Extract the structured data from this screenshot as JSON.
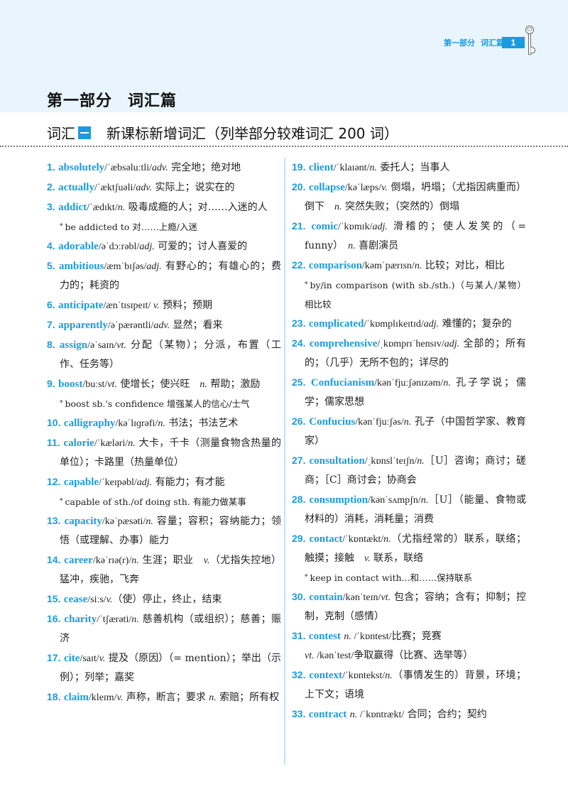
{
  "header": {
    "running_part": "第一部分",
    "running_section": "词汇篇",
    "page_number": "1",
    "accent_color": "#1a9be0",
    "band_color": "#e8f5fd"
  },
  "part_title": {
    "part": "第一部分",
    "name": "词汇篇"
  },
  "section_title": {
    "prefix": "词汇",
    "badge": "一",
    "title": "新课标新增词汇（列举部分较难词汇 200 词）"
  },
  "columns": [
    [
      {
        "num": "1.",
        "word": "absolutely",
        "lines": [
          [
            {
              "t": "/ˈæbsəluːtli/",
              "s": "p"
            },
            {
              "t": "adv.",
              "s": "i"
            },
            {
              "t": " 完全地；绝对地",
              "s": "d"
            }
          ]
        ]
      },
      {
        "num": "2.",
        "word": "actually",
        "lines": [
          [
            {
              "t": "/ˈæktʃuəli/",
              "s": "p"
            },
            {
              "t": "adv.",
              "s": "i"
            },
            {
              "t": " 实际上；说实在的",
              "s": "d"
            }
          ]
        ]
      },
      {
        "num": "3.",
        "word": "addict",
        "lines": [
          [
            {
              "t": "/ˈædɪkt/",
              "s": "p"
            },
            {
              "t": "n.",
              "s": "i"
            },
            {
              "t": " 吸毒成瘾的人；对……入迷的人",
              "s": "d"
            }
          ]
        ],
        "notes": [
          "be addicted to 对……上瘾/入迷"
        ]
      },
      {
        "num": "4.",
        "word": "adorable",
        "lines": [
          [
            {
              "t": "/əˈdɔːrəbl/",
              "s": "p"
            },
            {
              "t": "adj.",
              "s": "i"
            },
            {
              "t": " 可爱的；讨人喜爱的",
              "s": "d"
            }
          ]
        ]
      },
      {
        "num": "5.",
        "word": "ambitious",
        "lines": [
          [
            {
              "t": "/æmˈbɪʃəs/",
              "s": "p"
            },
            {
              "t": "adj.",
              "s": "i"
            },
            {
              "t": " 有野心的；有雄心的；费力的；耗资的",
              "s": "d"
            }
          ]
        ]
      },
      {
        "num": "6.",
        "word": "anticipate",
        "lines": [
          [
            {
              "t": "/ænˈtɪsɪpeɪt/ ",
              "s": "p"
            },
            {
              "t": "v.",
              "s": "i"
            },
            {
              "t": " 预料；预期",
              "s": "d"
            }
          ]
        ]
      },
      {
        "num": "7.",
        "word": "apparently",
        "lines": [
          [
            {
              "t": "/əˈpærəntli/",
              "s": "p"
            },
            {
              "t": "adv.",
              "s": "i"
            },
            {
              "t": " 显然；看来",
              "s": "d"
            }
          ]
        ]
      },
      {
        "num": "8.",
        "word": "assign",
        "lines": [
          [
            {
              "t": "/əˈsaɪn/",
              "s": "p"
            },
            {
              "t": "vt.",
              "s": "i"
            },
            {
              "t": " 分配（某物）；分派，布置（工作、任务等）",
              "s": "d"
            }
          ]
        ]
      },
      {
        "num": "9.",
        "word": "boost",
        "lines": [
          [
            {
              "t": "/buːst/",
              "s": "p"
            },
            {
              "t": "vt.",
              "s": "i"
            },
            {
              "t": " 使增长；使兴旺　",
              "s": "d"
            },
            {
              "t": "n.",
              "s": "i"
            },
            {
              "t": " 帮助；激励",
              "s": "d"
            }
          ]
        ],
        "notes": [
          "boost sb.'s confidence 增强某人的信心/士气"
        ]
      },
      {
        "num": "10.",
        "word": "calligraphy",
        "lines": [
          [
            {
              "t": "/kəˈlɪɡrəfi/",
              "s": "p"
            },
            {
              "t": "n.",
              "s": "i"
            },
            {
              "t": " 书法；书法艺术",
              "s": "d"
            }
          ]
        ]
      },
      {
        "num": "11.",
        "word": "calorie",
        "lines": [
          [
            {
              "t": "/ˈkæləri/",
              "s": "p"
            },
            {
              "t": "n.",
              "s": "i"
            },
            {
              "t": " 大卡，千卡（测量食物含热量的单位）；卡路里（热量单位）",
              "s": "d"
            }
          ]
        ]
      },
      {
        "num": "12.",
        "word": "capable",
        "lines": [
          [
            {
              "t": "/ˈkeɪpəbl/",
              "s": "p"
            },
            {
              "t": "adj.",
              "s": "i"
            },
            {
              "t": " 有能力；有才能",
              "s": "d"
            }
          ]
        ],
        "notes": [
          "capable of sth./of doing sth. 有能力做某事"
        ]
      },
      {
        "num": "13.",
        "word": "capacity",
        "lines": [
          [
            {
              "t": "/kəˈpæsəti/",
              "s": "p"
            },
            {
              "t": "n.",
              "s": "i"
            },
            {
              "t": " 容量；容积；容纳能力；领悟（或理解、办事）能力",
              "s": "d"
            }
          ]
        ]
      },
      {
        "num": "14.",
        "word": "career",
        "lines": [
          [
            {
              "t": "/kəˈrɪə(r)/",
              "s": "p"
            },
            {
              "t": "n.",
              "s": "i"
            },
            {
              "t": " 生涯；职业　",
              "s": "d"
            },
            {
              "t": "v.",
              "s": "i"
            },
            {
              "t": "（尤指失控地）猛冲，疾驰，飞奔",
              "s": "d"
            }
          ]
        ]
      },
      {
        "num": "15.",
        "word": "cease",
        "lines": [
          [
            {
              "t": "/siːs/",
              "s": "p"
            },
            {
              "t": "v.",
              "s": "i"
            },
            {
              "t": "（使）停止，终止，结束",
              "s": "d"
            }
          ]
        ]
      },
      {
        "num": "16.",
        "word": "charity",
        "lines": [
          [
            {
              "t": "/ˈtʃærəti/",
              "s": "p"
            },
            {
              "t": "n.",
              "s": "i"
            },
            {
              "t": " 慈善机构（或组织）；慈善；赈济",
              "s": "d"
            }
          ]
        ]
      },
      {
        "num": "17.",
        "word": "cite",
        "lines": [
          [
            {
              "t": "/saɪt/",
              "s": "p"
            },
            {
              "t": "v.",
              "s": "i"
            },
            {
              "t": " 提及（原因）（= mention）；举出（示例）；列举；嘉奖",
              "s": "d"
            }
          ]
        ]
      },
      {
        "num": "18.",
        "word": "claim",
        "lines": [
          [
            {
              "t": "/kleɪm/",
              "s": "p"
            },
            {
              "t": "v.",
              "s": "i"
            },
            {
              "t": " 声称，断言；要求 ",
              "s": "d"
            },
            {
              "t": "n.",
              "s": "i"
            },
            {
              "t": " 索赔；所有权",
              "s": "d"
            }
          ]
        ]
      }
    ],
    [
      {
        "num": "19.",
        "word": "client",
        "lines": [
          [
            {
              "t": "/ˈklaɪənt/",
              "s": "p"
            },
            {
              "t": "n.",
              "s": "i"
            },
            {
              "t": " 委托人；当事人",
              "s": "d"
            }
          ]
        ]
      },
      {
        "num": "20.",
        "word": "collapse",
        "lines": [
          [
            {
              "t": "/kəˈlæps/",
              "s": "p"
            },
            {
              "t": "v.",
              "s": "i"
            },
            {
              "t": " 倒塌，坍塌；（尤指因病重而）倒下　",
              "s": "d"
            },
            {
              "t": "n.",
              "s": "i"
            },
            {
              "t": " 突然失败；（突然的）倒塌",
              "s": "d"
            }
          ]
        ]
      },
      {
        "num": "21.",
        "word": "comic",
        "lines": [
          [
            {
              "t": "/ˈkɒmɪk/",
              "s": "p"
            },
            {
              "t": "adj.",
              "s": "i"
            },
            {
              "t": " 滑稽的；使人发笑的（= funny）　",
              "s": "d"
            },
            {
              "t": "n.",
              "s": "i"
            },
            {
              "t": " 喜剧演员",
              "s": "d"
            }
          ]
        ]
      },
      {
        "num": "22.",
        "word": "comparison",
        "lines": [
          [
            {
              "t": "/kəmˈpærɪsn/",
              "s": "p"
            },
            {
              "t": "n.",
              "s": "i"
            },
            {
              "t": " 比较；对比，相比",
              "s": "d"
            }
          ]
        ],
        "notes": [
          "by/in comparison (with sb./sth.)（与某人/某物）相比较"
        ]
      },
      {
        "num": "23.",
        "word": "complicated",
        "lines": [
          [
            {
              "t": "/ˈkɒmplɪkeɪtɪd/",
              "s": "p"
            },
            {
              "t": "adj.",
              "s": "i"
            },
            {
              "t": " 难懂的；复杂的",
              "s": "d"
            }
          ]
        ]
      },
      {
        "num": "24.",
        "word": "comprehensive",
        "lines": [
          [
            {
              "t": "/ˌkɒmprɪˈhensɪv/",
              "s": "p"
            },
            {
              "t": "adj.",
              "s": "i"
            },
            {
              "t": " 全部的；所有的；（几乎）无所不包的；详尽的",
              "s": "d"
            }
          ]
        ]
      },
      {
        "num": "25.",
        "word": "Confucianism",
        "lines": [
          [
            {
              "t": "/kənˈfjuːʃənɪzəm/",
              "s": "p"
            },
            {
              "t": "n.",
              "s": "i"
            },
            {
              "t": " 孔子学说；儒学；儒家思想",
              "s": "d"
            }
          ]
        ]
      },
      {
        "num": "26.",
        "word": "Confucius",
        "lines": [
          [
            {
              "t": "/kənˈfjuːʃəs/",
              "s": "p"
            },
            {
              "t": "n.",
              "s": "i"
            },
            {
              "t": " 孔子（中国哲学家、教育家）",
              "s": "d"
            }
          ]
        ]
      },
      {
        "num": "27.",
        "word": "consultation",
        "lines": [
          [
            {
              "t": "/ˌkɒnslˈteɪʃn/",
              "s": "p"
            },
            {
              "t": "n.",
              "s": "i"
            },
            {
              "t": "［U］咨询；商讨；磋商；［C］商讨会；协商会",
              "s": "d"
            }
          ]
        ]
      },
      {
        "num": "28.",
        "word": "consumption",
        "lines": [
          [
            {
              "t": "/kənˈsʌmpʃn/",
              "s": "p"
            },
            {
              "t": "n.",
              "s": "i"
            },
            {
              "t": "［U］（能量、食物或材料的）消耗，消耗量；消费",
              "s": "d"
            }
          ]
        ]
      },
      {
        "num": "29.",
        "word": "contact",
        "lines": [
          [
            {
              "t": "/ˈkɒntækt/",
              "s": "p"
            },
            {
              "t": "n.",
              "s": "i"
            },
            {
              "t": "（尤指经常的）联系，联络；触摸；接触　",
              "s": "d"
            },
            {
              "t": "v.",
              "s": "i"
            },
            {
              "t": " 联系，联络",
              "s": "d"
            }
          ]
        ],
        "notes": [
          "keep in contact with...和……保持联系"
        ]
      },
      {
        "num": "30.",
        "word": "contain",
        "lines": [
          [
            {
              "t": "/kənˈteɪn/",
              "s": "p"
            },
            {
              "t": "vt.",
              "s": "i"
            },
            {
              "t": " 包含；容纳；含有；抑制；控制，克制（感情）",
              "s": "d"
            }
          ]
        ]
      },
      {
        "num": "31.",
        "word": "contest",
        "lines": [
          [
            {
              "t": " ",
              "s": "d"
            },
            {
              "t": "n.",
              "s": "i"
            },
            {
              "t": " /ˈkɒntest/",
              "s": "p"
            },
            {
              "t": "比赛；竞赛",
              "s": "d"
            }
          ],
          [
            {
              "t": "vt.",
              "s": "i"
            },
            {
              "t": " /kənˈtest/",
              "s": "p"
            },
            {
              "t": "争取赢得（比赛、选举等）",
              "s": "d"
            }
          ]
        ]
      },
      {
        "num": "32.",
        "word": "context",
        "lines": [
          [
            {
              "t": "/ˈkɒntekst/",
              "s": "p"
            },
            {
              "t": "n.",
              "s": "i"
            },
            {
              "t": "（事情发生的）背景，环境；上下文；语境",
              "s": "d"
            }
          ]
        ]
      },
      {
        "num": "33.",
        "word": "contract",
        "lines": [
          [
            {
              "t": " ",
              "s": "d"
            },
            {
              "t": "n.",
              "s": "i"
            },
            {
              "t": " /ˈkɒntrækt/",
              "s": "p"
            },
            {
              "t": " 合同；合约；契约",
              "s": "d"
            }
          ]
        ]
      }
    ]
  ]
}
